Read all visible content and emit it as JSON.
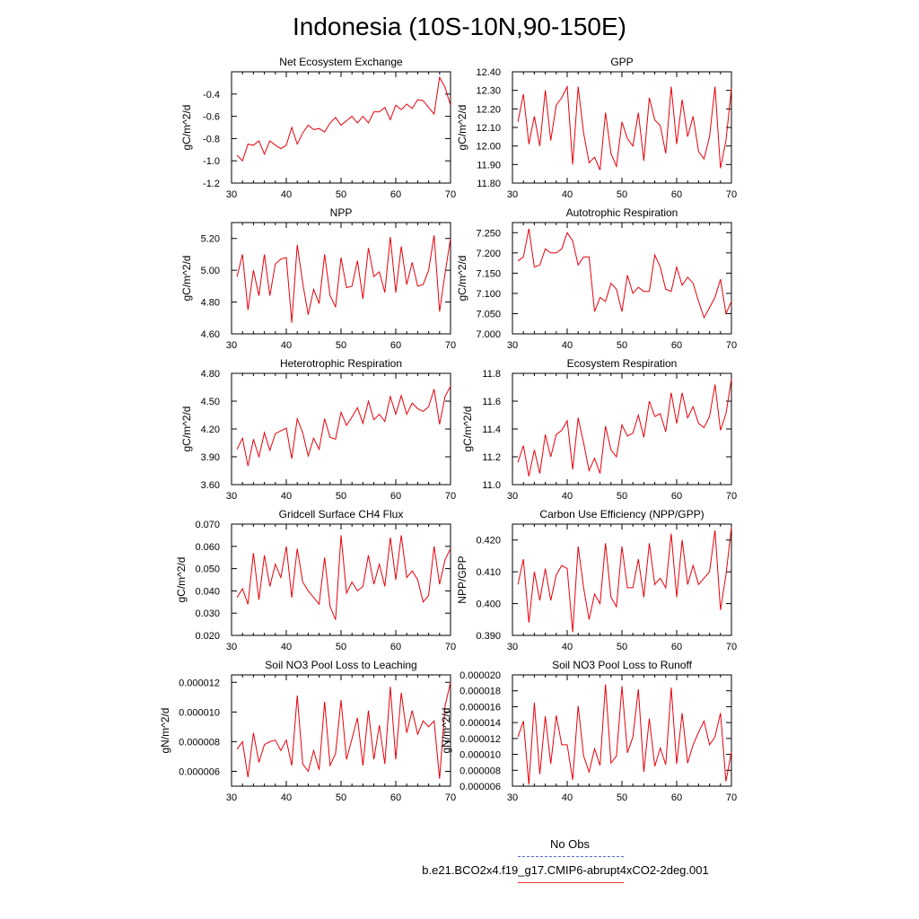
{
  "title": "Indonesia (10S-10N,90-150E)",
  "legend": {
    "obs_label": "No Obs",
    "obs_color": "#5566cc",
    "case_label": "b.e21.BCO2x4.f19_g17.CMIP6-abrupt4xCO2-2deg.001",
    "case_color": "#e8000b"
  },
  "chart_data": [
    {
      "type": "line",
      "title": "Net Ecosystem Exchange",
      "ylabel": "gC/m^2/d",
      "xlim": [
        30,
        70
      ],
      "ylim": [
        -1.2,
        -0.2
      ],
      "xticks": [
        "30",
        "40",
        "50",
        "60",
        "70"
      ],
      "yticks": [
        "-1.2",
        "-1.0",
        "-0.8",
        "-0.6",
        "-0.4"
      ],
      "yticks_values": [
        -1.2,
        -1.0,
        -0.8,
        -0.6,
        -0.4
      ],
      "x_start": 31,
      "values": [
        -0.95,
        -1.0,
        -0.85,
        -0.86,
        -0.82,
        -0.94,
        -0.82,
        -0.86,
        -0.89,
        -0.86,
        -0.7,
        -0.85,
        -0.75,
        -0.68,
        -0.72,
        -0.71,
        -0.74,
        -0.66,
        -0.61,
        -0.68,
        -0.64,
        -0.6,
        -0.66,
        -0.6,
        -0.66,
        -0.56,
        -0.56,
        -0.52,
        -0.63,
        -0.5,
        -0.54,
        -0.49,
        -0.53,
        -0.45,
        -0.46,
        -0.52,
        -0.58,
        -0.25,
        -0.34,
        -0.5
      ]
    },
    {
      "type": "line",
      "title": "GPP",
      "ylabel": "gC/m^2/d",
      "xlim": [
        30,
        70
      ],
      "ylim": [
        11.8,
        12.4
      ],
      "xticks": [
        "30",
        "40",
        "50",
        "60",
        "70"
      ],
      "yticks": [
        "11.80",
        "11.90",
        "12.00",
        "12.10",
        "12.20",
        "12.30",
        "12.40"
      ],
      "yticks_values": [
        11.8,
        11.9,
        12.0,
        12.1,
        12.2,
        12.3,
        12.4
      ],
      "x_start": 31,
      "values": [
        12.13,
        12.28,
        12.01,
        12.16,
        12.0,
        12.3,
        12.03,
        12.22,
        12.26,
        12.32,
        11.9,
        12.32,
        12.07,
        11.91,
        11.94,
        11.87,
        12.18,
        11.96,
        11.89,
        12.13,
        12.04,
        12.0,
        12.18,
        11.92,
        12.26,
        12.14,
        12.11,
        11.96,
        12.32,
        12.01,
        12.25,
        12.05,
        12.16,
        11.97,
        11.93,
        12.05,
        12.32,
        11.88,
        12.03,
        12.31
      ]
    },
    {
      "type": "line",
      "title": "NPP",
      "ylabel": "gC/m^2/d",
      "xlim": [
        30,
        70
      ],
      "ylim": [
        4.6,
        5.3
      ],
      "xticks": [
        "30",
        "40",
        "50",
        "60",
        "70"
      ],
      "yticks": [
        "4.60",
        "4.80",
        "5.00",
        "5.20"
      ],
      "yticks_values": [
        4.6,
        4.8,
        5.0,
        5.2
      ],
      "x_start": 31,
      "values": [
        4.96,
        5.1,
        4.75,
        5.0,
        4.84,
        5.1,
        4.84,
        5.04,
        5.07,
        5.08,
        4.67,
        5.16,
        4.92,
        4.72,
        4.88,
        4.79,
        5.1,
        4.84,
        4.77,
        5.08,
        4.89,
        4.9,
        5.06,
        4.82,
        5.14,
        4.96,
        4.99,
        4.86,
        5.21,
        4.86,
        5.15,
        4.91,
        5.05,
        4.9,
        4.91,
        5.0,
        5.22,
        4.74,
        4.98,
        5.2
      ]
    },
    {
      "type": "line",
      "title": "Autotrophic Respiration",
      "ylabel": "gC/m^2/d",
      "xlim": [
        30,
        70
      ],
      "ylim": [
        7.0,
        7.275
      ],
      "xticks": [
        "30",
        "40",
        "50",
        "60",
        "70"
      ],
      "yticks": [
        "7.000",
        "7.050",
        "7.100",
        "7.150",
        "7.200",
        "7.250"
      ],
      "yticks_values": [
        7.0,
        7.05,
        7.1,
        7.15,
        7.2,
        7.25
      ],
      "x_start": 31,
      "values": [
        7.18,
        7.19,
        7.26,
        7.165,
        7.17,
        7.21,
        7.2,
        7.2,
        7.21,
        7.25,
        7.23,
        7.17,
        7.19,
        7.19,
        7.055,
        7.09,
        7.08,
        7.125,
        7.11,
        7.055,
        7.145,
        7.1,
        7.115,
        7.105,
        7.105,
        7.195,
        7.165,
        7.11,
        7.105,
        7.165,
        7.12,
        7.14,
        7.125,
        7.08,
        7.04,
        7.065,
        7.09,
        7.135,
        7.05,
        7.08
      ]
    },
    {
      "type": "line",
      "title": "Heterotrophic Respiration",
      "ylabel": "gC/m^2/d",
      "xlim": [
        30,
        70
      ],
      "ylim": [
        3.6,
        4.8
      ],
      "xticks": [
        "30",
        "40",
        "50",
        "60",
        "70"
      ],
      "yticks": [
        "3.60",
        "3.90",
        "4.20",
        "4.50",
        "4.80"
      ],
      "yticks_values": [
        3.6,
        3.9,
        4.2,
        4.5,
        4.8
      ],
      "x_start": 31,
      "values": [
        3.98,
        4.1,
        3.8,
        4.09,
        3.9,
        4.16,
        3.97,
        4.15,
        4.18,
        4.21,
        3.88,
        4.31,
        4.16,
        3.91,
        4.1,
        3.98,
        4.31,
        4.11,
        4.09,
        4.38,
        4.24,
        4.33,
        4.43,
        4.26,
        4.5,
        4.3,
        4.36,
        4.28,
        4.55,
        4.36,
        4.56,
        4.36,
        4.48,
        4.42,
        4.39,
        4.44,
        4.63,
        4.25,
        4.55,
        4.66
      ]
    },
    {
      "type": "line",
      "title": "Ecosystem Respiration",
      "ylabel": "gC/m^2/d",
      "xlim": [
        30,
        70
      ],
      "ylim": [
        11.0,
        11.8
      ],
      "xticks": [
        "30",
        "40",
        "50",
        "60",
        "70"
      ],
      "yticks": [
        "11.0",
        "11.2",
        "11.4",
        "11.6",
        "11.8"
      ],
      "yticks_values": [
        11.0,
        11.2,
        11.4,
        11.6,
        11.8
      ],
      "x_start": 31,
      "values": [
        11.16,
        11.28,
        11.06,
        11.25,
        11.08,
        11.36,
        11.2,
        11.36,
        11.39,
        11.46,
        11.11,
        11.48,
        11.3,
        11.1,
        11.19,
        11.08,
        11.42,
        11.25,
        11.2,
        11.43,
        11.35,
        11.37,
        11.5,
        11.34,
        11.6,
        11.49,
        11.51,
        11.38,
        11.66,
        11.44,
        11.66,
        11.48,
        11.56,
        11.44,
        11.41,
        11.49,
        11.72,
        11.39,
        11.51,
        11.76
      ]
    },
    {
      "type": "line",
      "title": "Gridcell Surface CH4 Flux",
      "ylabel": "gC/m^2/d",
      "xlim": [
        30,
        70
      ],
      "ylim": [
        0.02,
        0.07
      ],
      "xticks": [
        "30",
        "40",
        "50",
        "60",
        "70"
      ],
      "yticks": [
        "0.020",
        "0.030",
        "0.040",
        "0.050",
        "0.060",
        "0.070"
      ],
      "yticks_values": [
        0.02,
        0.03,
        0.04,
        0.05,
        0.06,
        0.07
      ],
      "x_start": 31,
      "values": [
        0.037,
        0.041,
        0.034,
        0.057,
        0.036,
        0.056,
        0.042,
        0.052,
        0.046,
        0.06,
        0.037,
        0.059,
        0.044,
        0.04,
        0.037,
        0.034,
        0.055,
        0.033,
        0.027,
        0.065,
        0.039,
        0.044,
        0.04,
        0.042,
        0.056,
        0.043,
        0.052,
        0.042,
        0.064,
        0.045,
        0.065,
        0.046,
        0.049,
        0.045,
        0.035,
        0.038,
        0.06,
        0.043,
        0.054,
        0.059
      ]
    },
    {
      "type": "line",
      "title": "Carbon Use Efficiency (NPP/GPP)",
      "ylabel": "NPP/GPP",
      "xlim": [
        30,
        70
      ],
      "ylim": [
        0.39,
        0.425
      ],
      "xticks": [
        "30",
        "40",
        "50",
        "60",
        "70"
      ],
      "yticks": [
        "0.390",
        "0.400",
        "0.410",
        "0.420"
      ],
      "yticks_values": [
        0.39,
        0.4,
        0.41,
        0.42
      ],
      "x_start": 31,
      "values": [
        0.406,
        0.414,
        0.394,
        0.41,
        0.401,
        0.411,
        0.401,
        0.409,
        0.412,
        0.411,
        0.391,
        0.418,
        0.405,
        0.395,
        0.403,
        0.4,
        0.419,
        0.402,
        0.399,
        0.418,
        0.405,
        0.405,
        0.414,
        0.402,
        0.419,
        0.406,
        0.408,
        0.405,
        0.422,
        0.402,
        0.42,
        0.406,
        0.412,
        0.406,
        0.408,
        0.41,
        0.423,
        0.398,
        0.409,
        0.424
      ]
    },
    {
      "type": "line",
      "title": "Soil NO3 Pool Loss to Leaching",
      "ylabel": "gN/m^2/d",
      "xlim": [
        30,
        70
      ],
      "ylim": [
        5e-06,
        1.25e-05
      ],
      "xticks": [
        "30",
        "40",
        "50",
        "60",
        "70"
      ],
      "yticks": [
        "0.000006",
        "0.000008",
        "0.000010",
        "0.000012"
      ],
      "yticks_values": [
        6e-06,
        8e-06,
        1e-05,
        1.2e-05
      ],
      "x_start": 31,
      "values": [
        7.5e-06,
        8e-06,
        5.6e-06,
        8.6e-06,
        6.6e-06,
        7.8e-06,
        8e-06,
        8.1e-06,
        7.4e-06,
        8.1e-06,
        6.4e-06,
        1.11e-05,
        6.5e-06,
        6e-06,
        7.4e-06,
        6.1e-06,
        1.07e-05,
        6.4e-06,
        7.2e-06,
        1.08e-05,
        6.8e-06,
        8.2e-06,
        9.6e-06,
        6.4e-06,
        1.01e-05,
        6.8e-06,
        9.1e-06,
        6.5e-06,
        1.17e-05,
        6.8e-06,
        1.13e-05,
        8.6e-06,
        1.01e-05,
        8.5e-06,
        9.4e-06,
        9e-06,
        9.4e-06,
        5.5e-06,
        1.04e-05,
        1.2e-05
      ]
    },
    {
      "type": "line",
      "title": "Soil NO3 Pool Loss to Runoff",
      "ylabel": "gN/m^2/d",
      "xlim": [
        30,
        70
      ],
      "ylim": [
        6e-06,
        2e-05
      ],
      "xticks": [
        "30",
        "40",
        "50",
        "60",
        "70"
      ],
      "yticks": [
        "0.000006",
        "0.000008",
        "0.000010",
        "0.000012",
        "0.000014",
        "0.000016",
        "0.000018",
        "0.000020"
      ],
      "yticks_values": [
        6e-06,
        8e-06,
        1e-05,
        1.2e-05,
        1.4e-05,
        1.6e-05,
        1.8e-05,
        2e-05
      ],
      "x_start": 31,
      "values": [
        1.22e-05,
        1.42e-05,
        6.2e-06,
        1.65e-05,
        7.5e-06,
        1.48e-05,
        8.8e-06,
        1.49e-05,
        1.12e-05,
        1.12e-05,
        6.8e-06,
        1.61e-05,
        9.8e-06,
        7.8e-06,
        1.07e-05,
        8.6e-06,
        1.88e-05,
        8.9e-06,
        9.8e-06,
        1.86e-05,
        1.02e-05,
        1.22e-05,
        1.82e-05,
        7.8e-06,
        1.45e-05,
        8.5e-06,
        1.08e-05,
        8.7e-06,
        1.84e-05,
        8.8e-06,
        1.52e-05,
        8.9e-06,
        1.12e-05,
        1.28e-05,
        1.42e-05,
        1.12e-05,
        1.22e-05,
        1.52e-05,
        6.6e-06,
        1.03e-05
      ]
    }
  ]
}
